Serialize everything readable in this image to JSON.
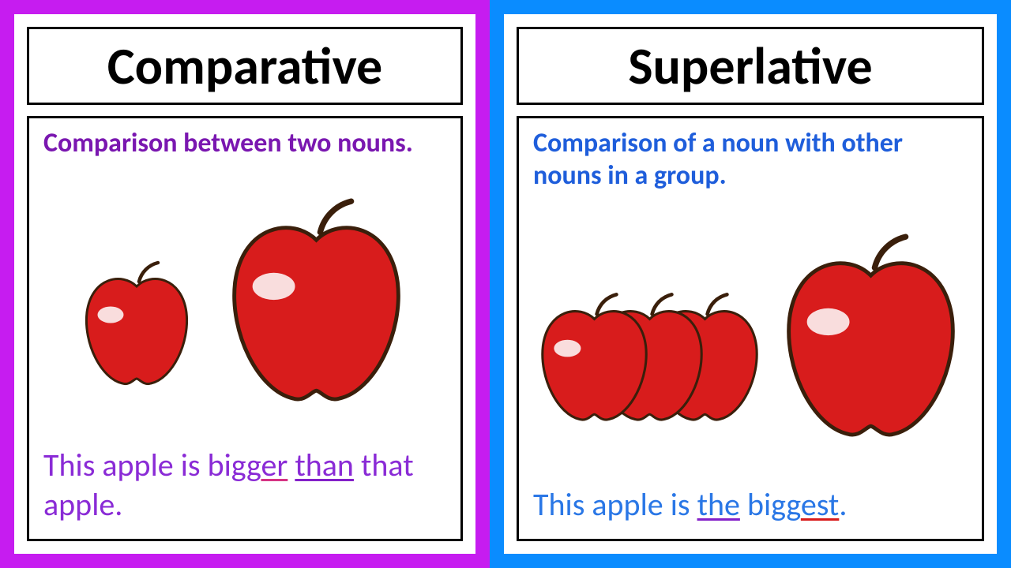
{
  "left": {
    "border_color": "#c61cf0",
    "title": "Comparative",
    "definition": "Comparison between two nouns.",
    "definition_color": "#7a17b0",
    "example_prefix": "This apple is ",
    "example_bigger": "bigg",
    "example_er": "er",
    "example_space": " ",
    "example_than": "than",
    "example_suffix": " that apple.",
    "example_color": "#8a2bd6",
    "apples": {
      "small_size": 150,
      "large_size": 245,
      "fill": "#d81c1c",
      "stroke": "#3a1f0b"
    }
  },
  "right": {
    "border_color": "#0a8cff",
    "title": "Superlative",
    "definition": "Comparison of a noun with other nouns in a group.",
    "definition_color": "#1f5edb",
    "example_prefix": "This apple is ",
    "example_the": "the",
    "example_space": " ",
    "example_bigg": "bigg",
    "example_est": "est",
    "example_suffix": ".",
    "example_color": "#2a77e6",
    "apples": {
      "cluster_size": 155,
      "large_size": 245,
      "fill": "#d81c1c",
      "stroke": "#3a1f0b"
    }
  },
  "typography": {
    "title_fontsize": 66,
    "definition_fontsize": 34,
    "example_fontsize": 40
  }
}
